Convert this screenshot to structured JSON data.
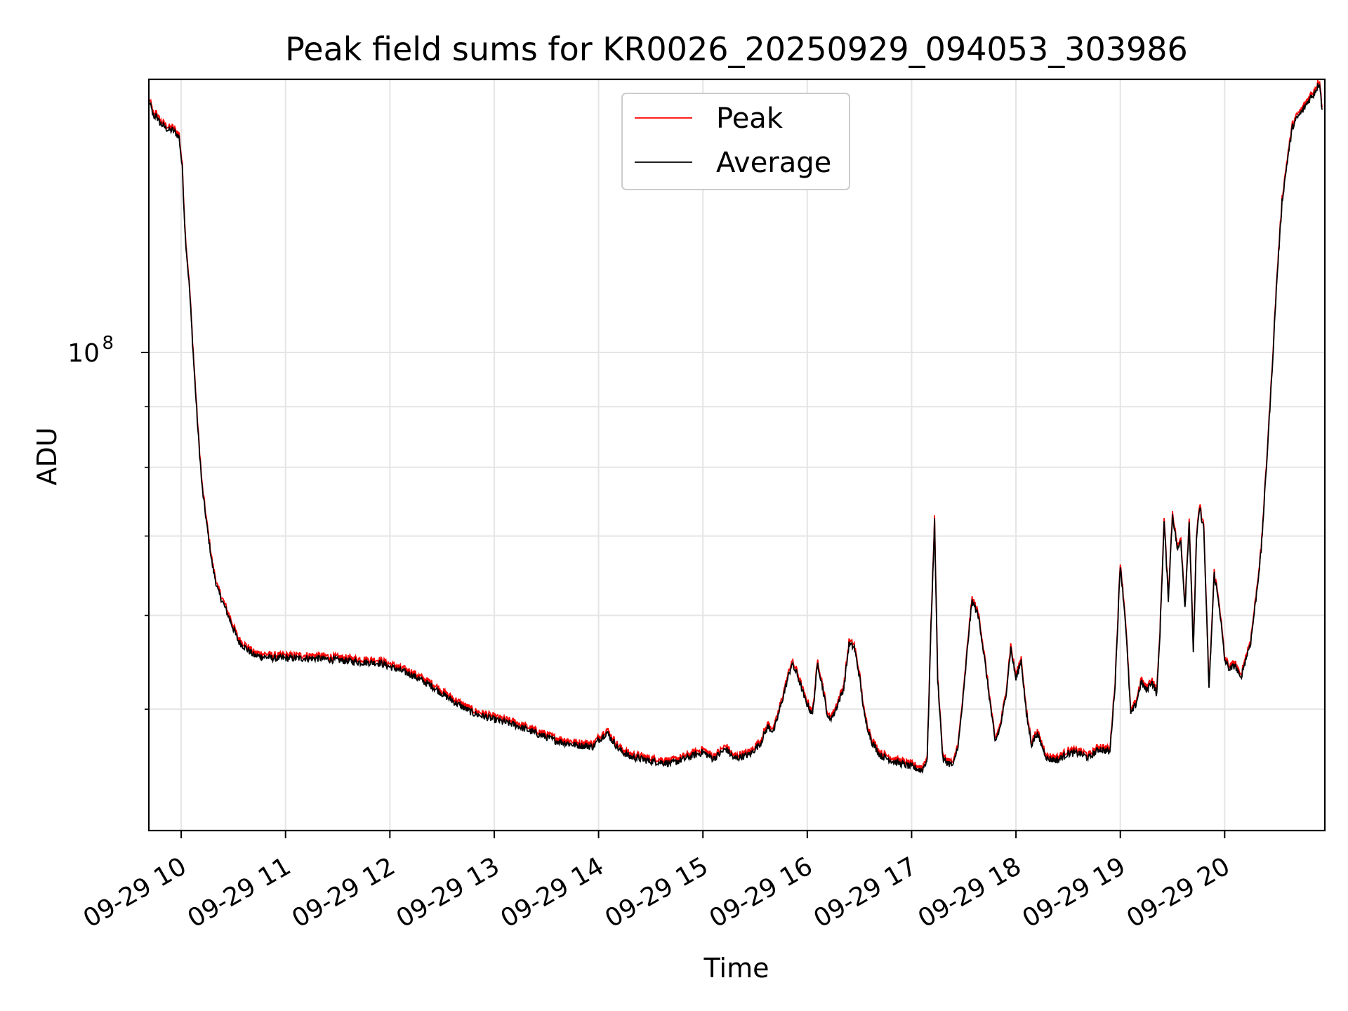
{
  "chart_data": {
    "type": "line",
    "title": "Peak field sums for KR0026_20250929_094053_303986",
    "xlabel": "Time",
    "ylabel": "ADU",
    "y_scale": "log",
    "y_major_tick_label": {
      "base": "10",
      "exponent": "8"
    },
    "ylim": [
      39500000,
      170000000
    ],
    "xlim": [
      9.69,
      20.96
    ],
    "y_minor_ticks": [
      50000000,
      60000000,
      70000000,
      80000000,
      90000000
    ],
    "x_ticks": [
      {
        "value": 10,
        "label": "09-29 10"
      },
      {
        "value": 11,
        "label": "09-29 11"
      },
      {
        "value": 12,
        "label": "09-29 12"
      },
      {
        "value": 13,
        "label": "09-29 13"
      },
      {
        "value": 14,
        "label": "09-29 14"
      },
      {
        "value": 15,
        "label": "09-29 15"
      },
      {
        "value": 16,
        "label": "09-29 16"
      },
      {
        "value": 17,
        "label": "09-29 17"
      },
      {
        "value": 18,
        "label": "09-29 18"
      },
      {
        "value": 19,
        "label": "09-29 19"
      },
      {
        "value": 20,
        "label": "09-29 20"
      }
    ],
    "grid": true,
    "legend_position": "top-center",
    "series": [
      {
        "name": "Peak",
        "color": "#ff0000",
        "offset_ratio": 1.006
      },
      {
        "name": "Average",
        "color": "#000000",
        "offset_ratio": 1.0
      }
    ],
    "x": [
      9.69,
      9.72,
      9.74,
      9.76,
      9.78,
      9.8,
      9.84,
      9.88,
      9.92,
      9.95,
      9.98,
      10.01,
      10.04,
      10.08,
      10.12,
      10.16,
      10.2,
      10.25,
      10.3,
      10.35,
      10.4,
      10.45,
      10.55,
      10.7,
      10.9,
      11.1,
      11.3,
      11.5,
      11.7,
      11.9,
      12.0,
      12.2,
      12.4,
      12.6,
      12.8,
      13.0,
      13.2,
      13.4,
      13.6,
      13.8,
      13.95,
      14.0,
      14.08,
      14.12,
      14.2,
      14.3,
      14.5,
      14.7,
      14.85,
      15.0,
      15.1,
      15.22,
      15.3,
      15.45,
      15.55,
      15.62,
      15.68,
      15.75,
      15.85,
      15.9,
      15.98,
      16.05,
      16.1,
      16.15,
      16.2,
      16.25,
      16.35,
      16.4,
      16.45,
      16.5,
      16.55,
      16.62,
      16.7,
      16.85,
      17.0,
      17.1,
      17.15,
      17.18,
      17.22,
      17.25,
      17.3,
      17.4,
      17.45,
      17.5,
      17.55,
      17.58,
      17.62,
      17.65,
      17.7,
      17.8,
      17.85,
      17.9,
      17.95,
      18.0,
      18.05,
      18.1,
      18.15,
      18.2,
      18.3,
      18.4,
      18.5,
      18.6,
      18.7,
      18.8,
      18.9,
      18.95,
      19.0,
      19.05,
      19.1,
      19.15,
      19.2,
      19.25,
      19.3,
      19.35,
      19.38,
      19.42,
      19.46,
      19.5,
      19.55,
      19.58,
      19.62,
      19.66,
      19.7,
      19.73,
      19.76,
      19.8,
      19.85,
      19.9,
      19.95,
      20.0,
      20.05,
      20.1,
      20.15,
      20.2,
      20.25,
      20.3,
      20.35,
      20.4,
      20.45,
      20.5,
      20.55,
      20.6,
      20.65,
      20.7,
      20.75,
      20.8,
      20.85,
      20.88,
      20.91,
      20.94,
      20.96
    ],
    "average_values": [
      163000000,
      160000000,
      157000000,
      159000000,
      157000000,
      156000000,
      155000000,
      154000000,
      154000000,
      153000000,
      152000000,
      143000000,
      125000000,
      113000000,
      98000000,
      86000000,
      77000000,
      71000000,
      66000000,
      63000000,
      61500000,
      60000000,
      57000000,
      55500000,
      55200000,
      55200000,
      55200000,
      55000000,
      54800000,
      54700000,
      54300000,
      53500000,
      52300000,
      50800000,
      49600000,
      49000000,
      48500000,
      47700000,
      47000000,
      46600000,
      46500000,
      47100000,
      47800000,
      47200000,
      46200000,
      45600000,
      45200000,
      45000000,
      45500000,
      46000000,
      45400000,
      46300000,
      45400000,
      45800000,
      46800000,
      48300000,
      47900000,
      50500000,
      54600000,
      53600000,
      50900000,
      49500000,
      54700000,
      52000000,
      49000000,
      49400000,
      52100000,
      56700000,
      56400000,
      53300000,
      49200000,
      46900000,
      45700000,
      45100000,
      44700000,
      44400000,
      45400000,
      56500000,
      72000000,
      53000000,
      45300000,
      44800000,
      46900000,
      51800000,
      58300000,
      61700000,
      60600000,
      59300000,
      55000000,
      46900000,
      48300000,
      51100000,
      56300000,
      53000000,
      55000000,
      49500000,
      46700000,
      47700000,
      45400000,
      45300000,
      45900000,
      45900000,
      45500000,
      46300000,
      46000000,
      52500000,
      66300000,
      59200000,
      49500000,
      50500000,
      52700000,
      51800000,
      52800000,
      51500000,
      58000000,
      72000000,
      62000000,
      73000000,
      68000000,
      69500000,
      61000000,
      72000000,
      56000000,
      69500000,
      74000000,
      71000000,
      52000000,
      65000000,
      61000000,
      55000000,
      54000000,
      54500000,
      53000000,
      55000000,
      57000000,
      62000000,
      68000000,
      80000000,
      95000000,
      115000000,
      134000000,
      145000000,
      155000000,
      158000000,
      160000000,
      163000000,
      165000000,
      167000000,
      169000000,
      158000000
    ]
  }
}
